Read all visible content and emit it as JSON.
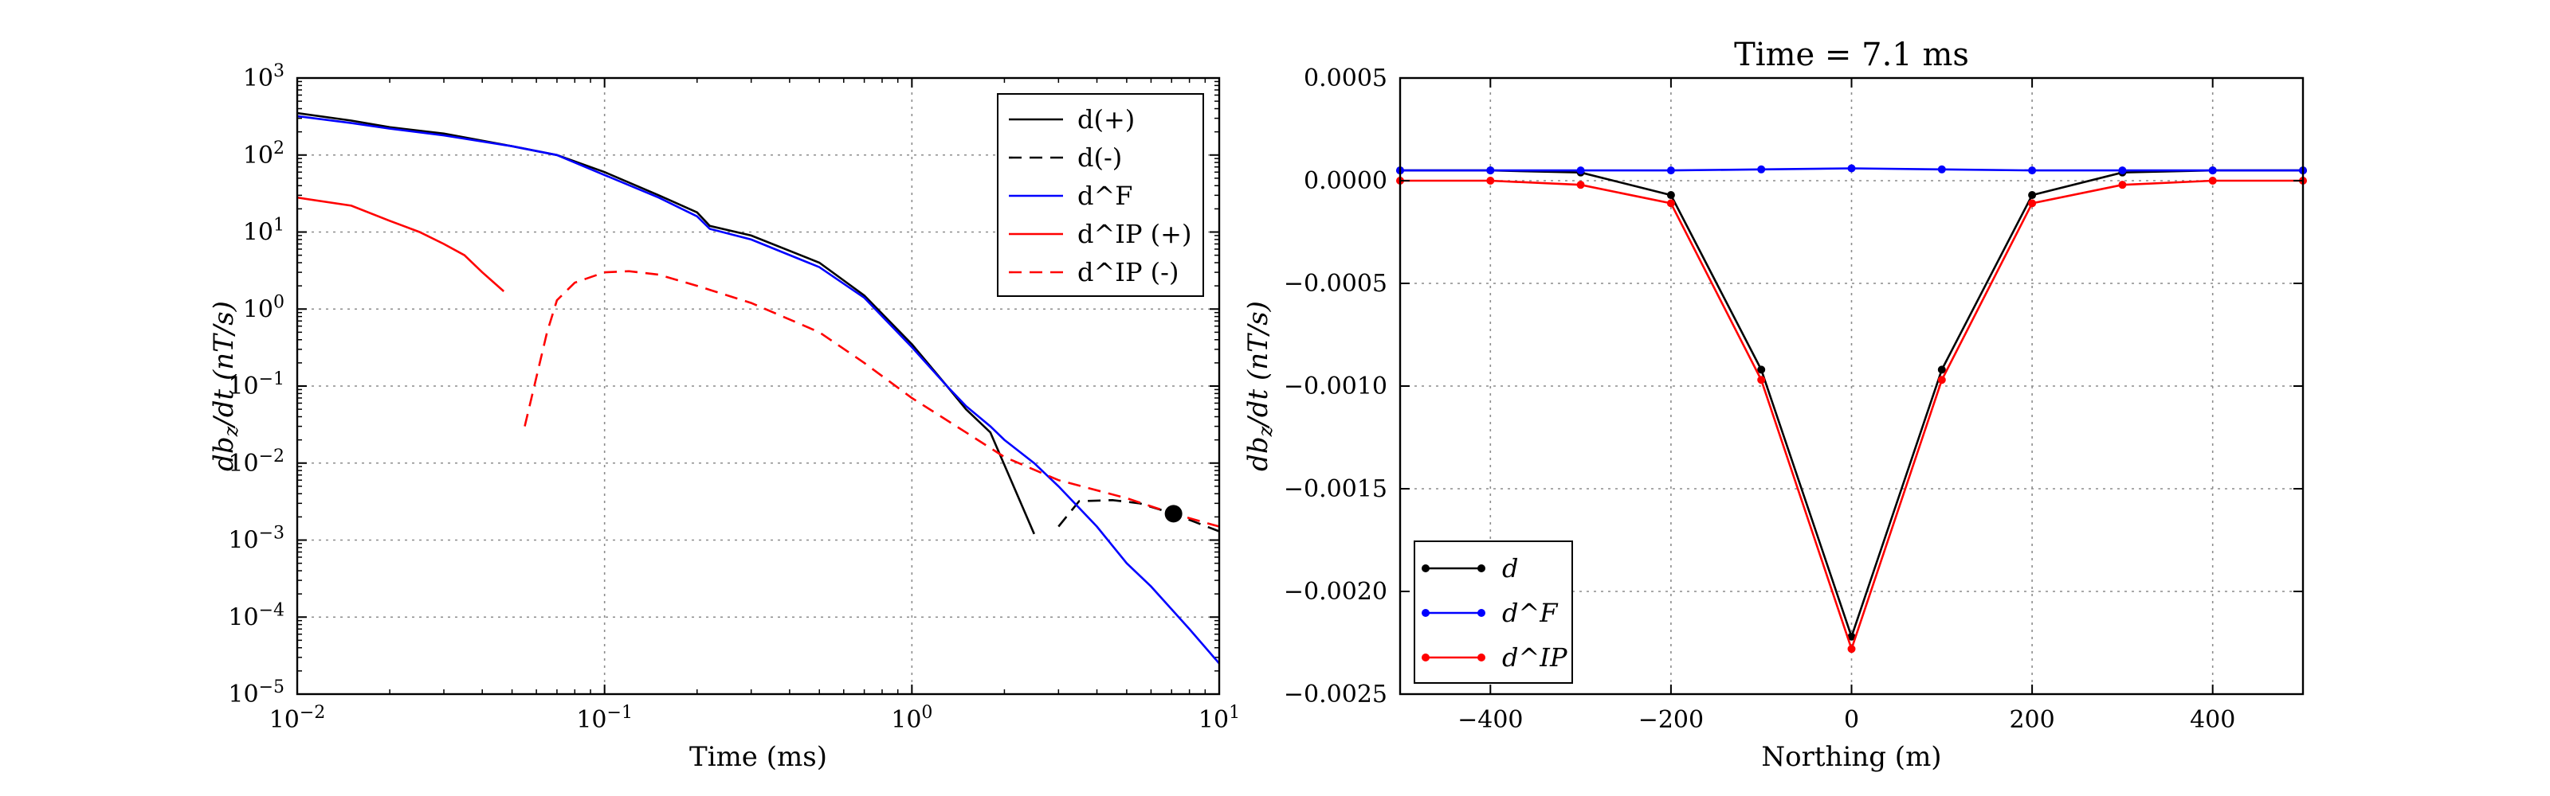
{
  "chart_data": [
    {
      "type": "line",
      "x_scale": "log",
      "y_scale": "log",
      "xlim": [
        0.01,
        10
      ],
      "ylim": [
        1e-05,
        1000
      ],
      "xlabel": "Time (ms)",
      "ylabel": "db_z/dt (nT/s)",
      "x_ticks": [
        0.01,
        0.1,
        1,
        10
      ],
      "x_tick_labels": [
        {
          "base": "10",
          "exp": "−2"
        },
        {
          "base": "10",
          "exp": "−1"
        },
        {
          "base": "10",
          "exp": "0"
        },
        {
          "base": "10",
          "exp": "1"
        }
      ],
      "y_ticks": [
        1e-05,
        0.0001,
        0.001,
        0.01,
        0.1,
        1,
        10,
        100,
        1000
      ],
      "y_tick_labels": [
        {
          "base": "10",
          "exp": "−5"
        },
        {
          "base": "10",
          "exp": "−4"
        },
        {
          "base": "10",
          "exp": "−3"
        },
        {
          "base": "10",
          "exp": "−2"
        },
        {
          "base": "10",
          "exp": "−1"
        },
        {
          "base": "10",
          "exp": "0"
        },
        {
          "base": "10",
          "exp": "1"
        },
        {
          "base": "10",
          "exp": "2"
        },
        {
          "base": "10",
          "exp": "3"
        }
      ],
      "grid": true,
      "legend_position": "top-right",
      "series": [
        {
          "name": "d(+)",
          "color": "#000000",
          "dash": "solid",
          "x": [
            0.01,
            0.015,
            0.02,
            0.03,
            0.05,
            0.07,
            0.1,
            0.15,
            0.2,
            0.22,
            0.3,
            0.5,
            0.7,
            1.0,
            1.3,
            1.5,
            1.8,
            2.5
          ],
          "y": [
            350,
            280,
            230,
            190,
            130,
            100,
            60,
            30,
            18,
            12,
            9,
            4.0,
            1.5,
            0.35,
            0.1,
            0.05,
            0.025,
            0.0012
          ]
        },
        {
          "name": "d(-)",
          "color": "#000000",
          "dash": "dashed",
          "x": [
            3.0,
            3.5,
            4.5,
            5.5,
            7.1,
            10
          ],
          "y": [
            0.0015,
            0.0032,
            0.0033,
            0.003,
            0.0022,
            0.0013
          ]
        },
        {
          "name": "d^F",
          "color": "#0000ff",
          "dash": "solid",
          "x": [
            0.01,
            0.015,
            0.02,
            0.03,
            0.05,
            0.07,
            0.1,
            0.15,
            0.2,
            0.22,
            0.3,
            0.5,
            0.7,
            1.0,
            1.3,
            1.5,
            1.8,
            2.0,
            2.5,
            3.0,
            4.0,
            5.0,
            6.0,
            8.0,
            10
          ],
          "y": [
            320,
            260,
            220,
            180,
            130,
            100,
            55,
            28,
            16,
            11,
            8,
            3.5,
            1.4,
            0.32,
            0.1,
            0.055,
            0.03,
            0.02,
            0.01,
            0.005,
            0.0015,
            0.0005,
            0.00025,
            7e-05,
            2.5e-05
          ]
        },
        {
          "name": "d^IP (+)",
          "color": "#ff0000",
          "dash": "solid",
          "x": [
            0.01,
            0.015,
            0.02,
            0.025,
            0.03,
            0.035,
            0.04,
            0.047
          ],
          "y": [
            28,
            22,
            14,
            10,
            7,
            5,
            3,
            1.7
          ]
        },
        {
          "name": "d^IP (-)",
          "color": "#ff0000",
          "dash": "dashed",
          "x": [
            0.055,
            0.065,
            0.07,
            0.08,
            0.1,
            0.12,
            0.15,
            0.2,
            0.3,
            0.5,
            0.7,
            1.0,
            1.5,
            2.0,
            3.0,
            5.0,
            7.1,
            10
          ],
          "y": [
            0.03,
            0.5,
            1.3,
            2.2,
            3.0,
            3.1,
            2.8,
            2.0,
            1.2,
            0.5,
            0.2,
            0.07,
            0.025,
            0.012,
            0.006,
            0.0035,
            0.0022,
            0.0015
          ]
        }
      ],
      "highlight_point": {
        "x": 7.1,
        "y": 0.0022,
        "color": "#000000"
      }
    },
    {
      "type": "line",
      "title": "Time = 7.1 ms",
      "xlim": [
        -500,
        500
      ],
      "ylim": [
        -0.0025,
        0.0005
      ],
      "xlabel": "Northing (m)",
      "ylabel": "db_z/dt (nT/s)",
      "x_ticks": [
        -400,
        -200,
        0,
        200,
        400
      ],
      "x_tick_labels": [
        "−400",
        "−200",
        "0",
        "200",
        "400"
      ],
      "y_ticks": [
        -0.0025,
        -0.002,
        -0.0015,
        -0.001,
        -0.0005,
        0.0,
        0.0005
      ],
      "y_tick_labels": [
        "−0.0025",
        "−0.0020",
        "−0.0015",
        "−0.0010",
        "−0.0005",
        "0.0000",
        "0.0005"
      ],
      "grid": true,
      "legend_position": "bottom-left",
      "series": [
        {
          "name": "d",
          "color": "#000000",
          "x": [
            -500,
            -400,
            -300,
            -200,
            -100,
            0,
            100,
            200,
            300,
            400,
            500
          ],
          "y": [
            5e-05,
            5e-05,
            4e-05,
            -7e-05,
            -0.00092,
            -0.00222,
            -0.00092,
            -7e-05,
            4e-05,
            5e-05,
            5e-05
          ]
        },
        {
          "name": "d^F",
          "color": "#0000ff",
          "x": [
            -500,
            -400,
            -300,
            -200,
            -100,
            0,
            100,
            200,
            300,
            400,
            500
          ],
          "y": [
            5e-05,
            5e-05,
            5e-05,
            5e-05,
            5.5e-05,
            6e-05,
            5.5e-05,
            5e-05,
            5e-05,
            5e-05,
            5e-05
          ]
        },
        {
          "name": "d^IP",
          "color": "#ff0000",
          "x": [
            -500,
            -400,
            -300,
            -200,
            -100,
            0,
            100,
            200,
            300,
            400,
            500
          ],
          "y": [
            0.0,
            0.0,
            -2e-05,
            -0.00011,
            -0.00097,
            -0.00228,
            -0.00097,
            -0.00011,
            -2e-05,
            0.0,
            0.0
          ]
        }
      ]
    }
  ]
}
